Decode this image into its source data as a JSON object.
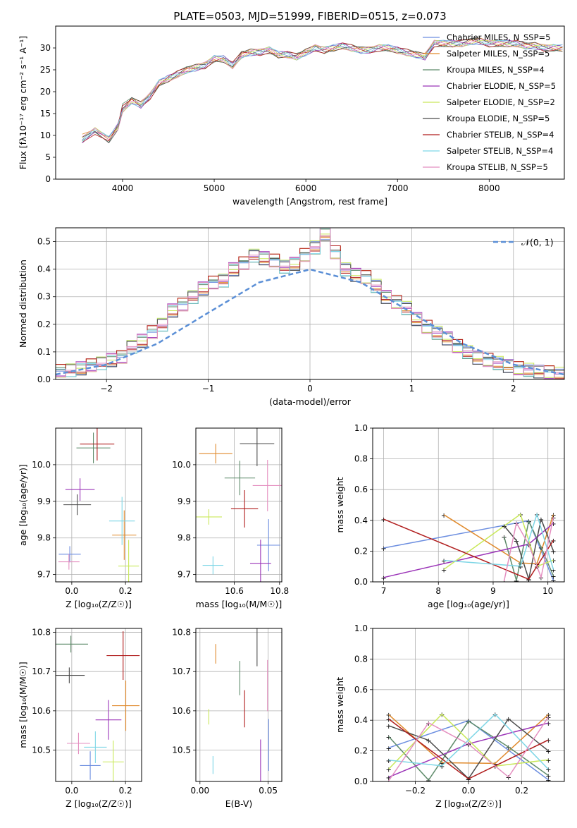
{
  "title": "PLATE=0503, MJD=51999, FIBERID=0515, z=0.073",
  "colors": [
    "#6c8ee0",
    "#e08a2c",
    "#5e8b6a",
    "#9b34b8",
    "#c9e85a",
    "#4b4b4b",
    "#b01c1c",
    "#7ed6e6",
    "#e48fc0"
  ],
  "chart_data": [
    {
      "id": "spectrum",
      "type": "line",
      "xlabel": "wavelength [Angstrom, rest frame]",
      "ylabel": "Flux [fλ10⁻¹⁷ erg cm⁻² s⁻¹ A⁻¹]",
      "xlim": [
        3270,
        8820
      ],
      "ylim": [
        0,
        35
      ],
      "xticks": [
        "4000",
        "5000",
        "6000",
        "7000",
        "8000"
      ],
      "yticks": [
        "0",
        "5",
        "10",
        "15",
        "20",
        "25",
        "30"
      ],
      "x": [
        3560,
        3700,
        3850,
        3950,
        4000,
        4100,
        4200,
        4300,
        4400,
        4500,
        4600,
        4700,
        4800,
        4900,
        5000,
        5100,
        5200,
        5300,
        5400,
        5500,
        5600,
        5700,
        5800,
        5900,
        6000,
        6100,
        6200,
        6300,
        6400,
        6500,
        6600,
        6700,
        6800,
        6900,
        7000,
        7100,
        7200,
        7300,
        7400,
        7500,
        7600,
        7700,
        7800,
        7900,
        8000,
        8100,
        8200,
        8300,
        8400,
        8500,
        8600,
        8700,
        8800
      ],
      "series": [
        {
          "name": "Chabrier MILES, N_SSP=5",
          "values": [
            9,
            11,
            9,
            12,
            16,
            18,
            17,
            19,
            22,
            23,
            24,
            25,
            25.5,
            26,
            27.5,
            27.5,
            26,
            28.5,
            29,
            29,
            29.5,
            28.5,
            28.5,
            28,
            29,
            30,
            29.5,
            30,
            30.5,
            30,
            29.5,
            29.5,
            30,
            30,
            29.5,
            29,
            28.5,
            28,
            31,
            31,
            31,
            31,
            31.5,
            31.5,
            31,
            31,
            31,
            31,
            30.5,
            30.5,
            30,
            30,
            30
          ]
        },
        {
          "name": "Salpeter MILES, N_SSP=5",
          "values": [
            9.5,
            11,
            9.5,
            12.5,
            16,
            18,
            17,
            19,
            22,
            23,
            24,
            25,
            25.5,
            26,
            27.5,
            27.5,
            26,
            28.5,
            29,
            29,
            29.5,
            28.5,
            28.5,
            28,
            29,
            30,
            29.5,
            30,
            30.5,
            30,
            29.5,
            29.5,
            30,
            30,
            29.5,
            29,
            28.5,
            28,
            31,
            31,
            31,
            31,
            31.5,
            31.5,
            31,
            31,
            31,
            31,
            30.5,
            30.5,
            30,
            30,
            30
          ]
        },
        {
          "name": "Kroupa MILES, N_SSP=4",
          "values": [
            9,
            11.5,
            9,
            12,
            16.5,
            18,
            17,
            19,
            22,
            23,
            24,
            25,
            25.5,
            26,
            27.5,
            27.5,
            26,
            28.5,
            29,
            29,
            29.5,
            28.5,
            28.5,
            28,
            29,
            30,
            29.5,
            30,
            30.5,
            30,
            29.5,
            29.5,
            30,
            30,
            29.5,
            29,
            28.5,
            28,
            31,
            31,
            31,
            31,
            31.5,
            31.5,
            31,
            31,
            31,
            31,
            30.5,
            30.5,
            30,
            30,
            30
          ]
        },
        {
          "name": "Chabrier ELODIE, N_SSP=5",
          "values": [
            9,
            11,
            9,
            12,
            16,
            18,
            17,
            19,
            22,
            23,
            24,
            25,
            25.5,
            26,
            27.5,
            27.5,
            26,
            28.5,
            29,
            29,
            29.5,
            28.5,
            28.5,
            28,
            29,
            30,
            29.5,
            30,
            30.5,
            30,
            29.5,
            29.5,
            30,
            30,
            29.5,
            29,
            28.5,
            28,
            31,
            31,
            31,
            31,
            31.5,
            31.5,
            31,
            31,
            31,
            31,
            30.5,
            30.5,
            30,
            30,
            30
          ]
        },
        {
          "name": "Salpeter ELODIE, N_SSP=2",
          "values": [
            9,
            11,
            9,
            12,
            16,
            18,
            17,
            19,
            22,
            23,
            24,
            25,
            25.5,
            26,
            27.5,
            27.5,
            26,
            28.5,
            29,
            29,
            29.5,
            28.5,
            28.5,
            28,
            29,
            30,
            29.5,
            30,
            30.5,
            30,
            29.5,
            29.5,
            30,
            30,
            29.5,
            29,
            28.5,
            28,
            31,
            31,
            31,
            31,
            31.5,
            31.5,
            31,
            31,
            31,
            31,
            30.5,
            30.5,
            30,
            30,
            30
          ]
        },
        {
          "name": "Kroupa ELODIE, N_SSP=5",
          "values": [
            9,
            11,
            9,
            12,
            16,
            18,
            17,
            19,
            22,
            23,
            24,
            25,
            25.5,
            26,
            27.5,
            27.5,
            26,
            28.5,
            29,
            29,
            29.5,
            28.5,
            28.5,
            28,
            29,
            30,
            29.5,
            30,
            30.5,
            30,
            29.5,
            29.5,
            30,
            30,
            29.5,
            29,
            28.5,
            28,
            31,
            31,
            31,
            31,
            31.5,
            31.5,
            31,
            31,
            31,
            31,
            30.5,
            30.5,
            30,
            30,
            30
          ]
        },
        {
          "name": "Chabrier STELIB, N_SSP=4",
          "values": [
            9,
            11,
            9,
            12,
            16,
            18,
            17,
            19,
            22,
            23,
            24,
            25,
            25.5,
            26,
            27.5,
            27.5,
            26,
            28.5,
            29,
            29,
            29.5,
            28.5,
            28.5,
            28,
            29,
            30,
            29.5,
            30,
            30.5,
            30,
            29.5,
            29.5,
            30,
            30,
            29.5,
            29,
            28.5,
            28,
            31,
            31,
            31,
            31,
            31.5,
            31.5,
            31,
            31,
            31,
            31,
            30.5,
            30.5,
            30,
            30,
            30
          ]
        },
        {
          "name": "Salpeter STELIB, N_SSP=4",
          "values": [
            9,
            11,
            9,
            12,
            16,
            18,
            17,
            19,
            22,
            23,
            24,
            25,
            25.5,
            26,
            27.5,
            27.5,
            26,
            28.5,
            29,
            29,
            29.5,
            28.5,
            28.5,
            28,
            29,
            30,
            29.5,
            30,
            30.5,
            30,
            29.5,
            29.5,
            30,
            30,
            29.5,
            29,
            28.5,
            28,
            31,
            31,
            31,
            31,
            31.5,
            31.5,
            31,
            31,
            31,
            31,
            30.5,
            30.5,
            30,
            30,
            30
          ]
        },
        {
          "name": "Kroupa STELIB, N_SSP=5",
          "values": [
            9,
            11,
            9,
            12,
            16,
            18,
            17,
            19,
            22,
            23,
            24,
            25,
            25.5,
            26,
            27.5,
            27.5,
            26,
            28.5,
            29,
            29,
            29.5,
            28.5,
            28.5,
            28,
            29,
            30,
            29.5,
            30,
            30.5,
            30,
            29.5,
            29.5,
            30,
            30,
            29.5,
            29,
            28.5,
            28,
            31,
            31,
            31,
            31,
            31.5,
            31.5,
            31,
            31,
            31,
            31,
            30.5,
            30.5,
            30,
            30,
            30
          ]
        }
      ],
      "legend": "right"
    },
    {
      "id": "residuals",
      "type": "line",
      "xlabel": "(data-model)/error",
      "ylabel": "Normed distribution",
      "xlim": [
        -2.5,
        2.5
      ],
      "ylim": [
        0,
        0.55
      ],
      "xticks": [
        "−2",
        "−1",
        "0",
        "1",
        "2"
      ],
      "yticks": [
        "0.0",
        "0.1",
        "0.2",
        "0.3",
        "0.4",
        "0.5"
      ],
      "bin_width": 0.1,
      "reference": {
        "name": "𝒩(0, 1)",
        "x": [
          -2.5,
          -2,
          -1.5,
          -1,
          -0.5,
          0,
          0.5,
          1,
          1.5,
          2,
          2.5
        ],
        "values": [
          0.018,
          0.054,
          0.13,
          0.242,
          0.352,
          0.399,
          0.352,
          0.242,
          0.13,
          0.054,
          0.018
        ]
      },
      "series": [
        {
          "values": [
            0.03,
            0.035,
            0.04,
            0.05,
            0.06,
            0.07,
            0.08,
            0.12,
            0.14,
            0.17,
            0.2,
            0.25,
            0.27,
            0.3,
            0.33,
            0.35,
            0.36,
            0.4,
            0.42,
            0.45,
            0.44,
            0.43,
            0.41,
            0.42,
            0.45,
            0.48,
            0.53,
            0.46,
            0.4,
            0.38,
            0.37,
            0.34,
            0.3,
            0.28,
            0.26,
            0.22,
            0.19,
            0.17,
            0.15,
            0.12,
            0.1,
            0.08,
            0.07,
            0.06,
            0.05,
            0.04,
            0.035,
            0.03,
            0.025,
            0.02
          ]
        }
      ]
    },
    {
      "id": "age-z",
      "type": "scatter",
      "xlabel": "Z [log₁₀(Z/Z☉)]",
      "ylabel": "age  [log₁₀(age/yr)]",
      "xlim": [
        -0.06,
        0.26
      ],
      "ylim": [
        9.68,
        10.1
      ],
      "xticks": [
        "0.0",
        "0.2"
      ],
      "yticks": [
        "9.7",
        "9.8",
        "9.9",
        "10.0"
      ]
    },
    {
      "id": "age-mass",
      "type": "scatter",
      "xlabel": "mass [log₁₀(M/M☉)]",
      "ylabel": "",
      "xlim": [
        10.43,
        10.81
      ],
      "ylim": [
        9.68,
        10.1
      ],
      "xticks": [
        "10.6",
        "10.8"
      ],
      "yticks": [
        "9.7",
        "9.8",
        "9.9",
        "10.0"
      ]
    },
    {
      "id": "mass-weight-age",
      "type": "line",
      "xlabel": "age  [log₁₀(age/yr)]",
      "ylabel": "mass weight",
      "xlim": [
        6.8,
        10.3
      ],
      "ylim": [
        0,
        1
      ],
      "xticks": [
        "7",
        "8",
        "9",
        "10"
      ],
      "yticks": [
        "0.0",
        "0.2",
        "0.4",
        "0.6",
        "0.8",
        "1.0"
      ]
    },
    {
      "id": "mass-z",
      "type": "scatter",
      "xlabel": "Z [log₁₀(Z/Z☉)]",
      "ylabel": "mass [log₁₀(M/M☉)]",
      "xlim": [
        -0.06,
        0.26
      ],
      "ylim": [
        10.42,
        10.81
      ],
      "xticks": [
        "0.0",
        "0.2"
      ],
      "yticks": [
        "10.5",
        "10.6",
        "10.7",
        "10.8"
      ]
    },
    {
      "id": "mass-ebv",
      "type": "scatter",
      "xlabel": "E(B-V)",
      "ylabel": "",
      "xlim": [
        -0.003,
        0.06
      ],
      "ylim": [
        10.42,
        10.81
      ],
      "xticks": [
        "0.00",
        "0.05"
      ],
      "yticks": [
        "10.5",
        "10.6",
        "10.7",
        "10.8"
      ]
    },
    {
      "id": "mass-weight-z",
      "type": "line",
      "xlabel": "Z [log₁₀(Z/Z☉)]",
      "ylabel": "mass weight",
      "xlim": [
        -0.36,
        0.36
      ],
      "ylim": [
        0,
        1
      ],
      "xticks": [
        "−0.2",
        "0.0",
        "0.2"
      ],
      "yticks": [
        "0.0",
        "0.2",
        "0.4",
        "0.6",
        "0.8",
        "1.0"
      ]
    }
  ]
}
